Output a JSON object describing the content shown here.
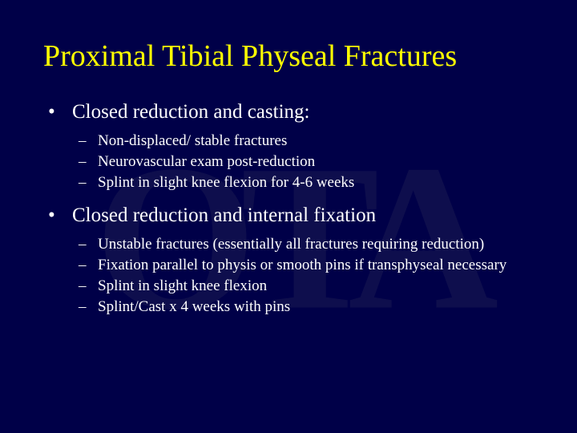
{
  "background_color": "#000048",
  "title_color": "#ffff00",
  "text_color": "#ffffff",
  "title": "Proximal Tibial Physeal Fractures",
  "sections": [
    {
      "heading": "Closed reduction and casting:",
      "items": [
        "Non-displaced/ stable fractures",
        "Neurovascular exam post-reduction",
        "Splint in slight knee flexion for 4-6 weeks"
      ]
    },
    {
      "heading": "Closed reduction and internal fixation",
      "items": [
        "Unstable fractures (essentially all fractures requiring reduction)",
        "Fixation parallel to physis or smooth pins if transphyseal necessary",
        "Splint in slight knee flexion",
        "Splint/Cast x 4 weeks with pins"
      ]
    }
  ],
  "watermark_text": "OTA"
}
